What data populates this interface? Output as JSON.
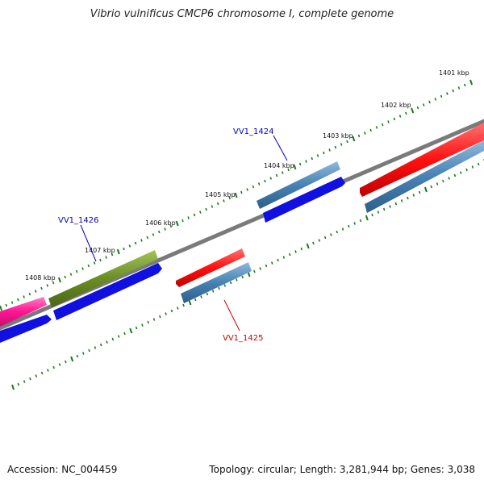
{
  "title": "Vibrio vulnificus CMCP6 chromosome I, complete genome",
  "accession_text": "Accession: NC_004459",
  "summary_text": "Topology: circular; Length: 3,281,944 bp; Genes: 3,038",
  "kbp_labels": [
    "1401 kbp",
    "1402 kbp",
    "1403 kbp",
    "1404 kbp",
    "1405 kbp",
    "1406 kbp",
    "1407 kbp",
    "1408 kbp"
  ],
  "gene_labels": [
    {
      "text": "VV1_1424",
      "color": "#0000cc"
    },
    {
      "text": "VV1_1426",
      "color": "#0000cc"
    },
    {
      "text": "VV1_1425",
      "color": "#cc0000"
    }
  ],
  "colors": {
    "backbone": "#7a7a7a",
    "ticks": "#1e7a1e",
    "cds_blue": "#1010e0",
    "cds_steel": "#4682b4",
    "cds_red": "#ee1010",
    "cds_olive": "#6b8e23",
    "cds_pink": "#ff1493"
  }
}
